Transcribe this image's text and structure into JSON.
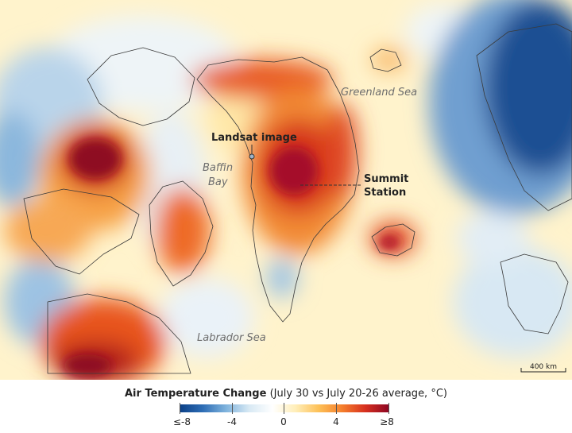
{
  "map": {
    "labels": {
      "greenland_sea": "Greenland Sea",
      "baffin_line1": "Baffin",
      "baffin_line2": "Bay",
      "labrador_sea": "Labrador Sea",
      "landsat": "Landsat image",
      "summit_line1": "Summit",
      "summit_line2": "Station"
    },
    "scale_bar": "400 km"
  },
  "legend": {
    "title_bold": "Air Temperature Change",
    "title_rest": " (July 30 vs July 20-26 average, °C)",
    "ticks": [
      "≤-8",
      "-4",
      "0",
      "4",
      "≥8"
    ],
    "colors": [
      "#0b3f86",
      "#2d6db5",
      "#7fb3dd",
      "#d8e9f4",
      "#ffffff",
      "#ffeeb8",
      "#fdc057",
      "#f57f2c",
      "#d7301f",
      "#8e0723"
    ]
  }
}
